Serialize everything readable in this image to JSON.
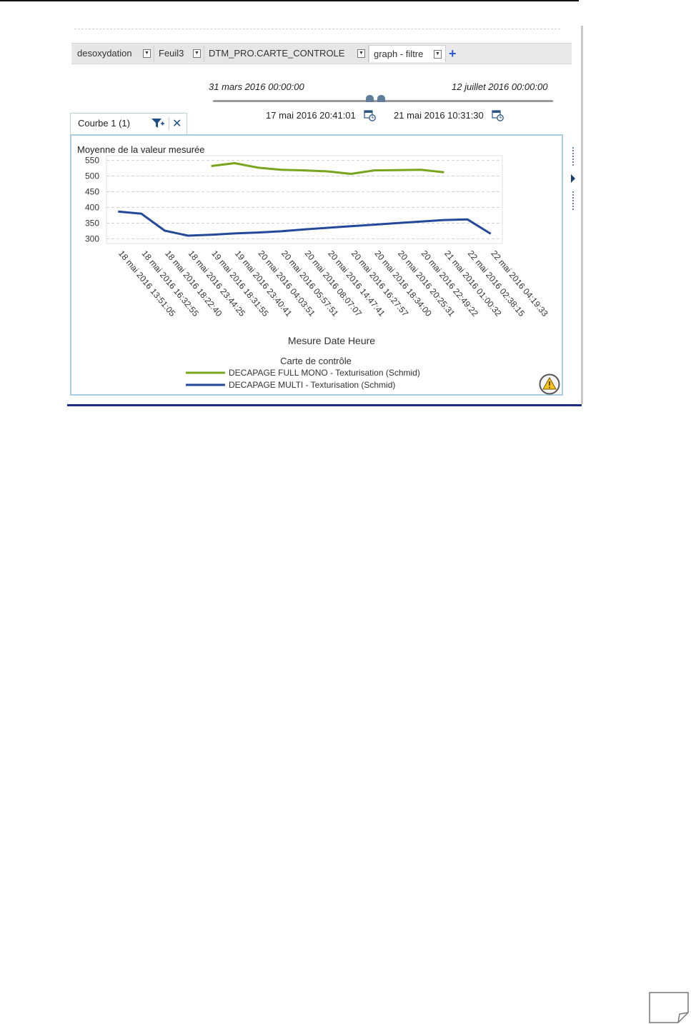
{
  "tabs": [
    {
      "label": "desoxydation",
      "active": false
    },
    {
      "label": "Feuil3",
      "active": false
    },
    {
      "label": "DTM_PRO.CARTE_CONTROLE",
      "active": false
    },
    {
      "label": "graph - filtre",
      "active": true
    }
  ],
  "range": {
    "start": "31 mars 2016 00:00:00",
    "end": "12 juillet 2016 00:00:00",
    "selected_start": "17 mai 2016 20:41:01",
    "selected_end": "21 mai 2016 10:31:30"
  },
  "chart_tab": {
    "label": "Courbe 1 (1)"
  },
  "icons": {
    "tab_dropdown": "chevron-down-icon",
    "add_tab": "plus-icon",
    "slider_handle": "slider-handle-icon",
    "calendar": "calendar-icon",
    "filter": "filter-icon",
    "close": "close-icon",
    "warning": "warning-icon",
    "side_panel": "chevron-right-icon"
  },
  "colors": {
    "full_mono": "#78a51e",
    "multi": "#24489a",
    "accent": "#2a5ad8"
  },
  "chart_data": {
    "type": "line",
    "ylabel": "Moyenne de la valeur mesurée",
    "xlabel": "Mesure Date Heure",
    "yticks": [
      300,
      350,
      400,
      450,
      500,
      550
    ],
    "ylim": [
      285,
      565
    ],
    "grid": true,
    "legend_title": "Carte de contrôle",
    "legend_position": "bottom",
    "categories": [
      "18 mai 2016 13:51:05",
      "18 mai 2016 16:32:55",
      "18 mai 2016 18:22:40",
      "18 mai 2016 23:44:25",
      "19 mai 2016 18:31:55",
      "19 mai 2016 23:40:41",
      "20 mai 2016 04:03:51",
      "20 mai 2016 05:57:51",
      "20 mai 2016 08:07:07",
      "20 mai 2016 14:47:41",
      "20 mai 2016 16:27:57",
      "20 mai 2016 18:34:00",
      "20 mai 2016 20:25:31",
      "20 mai 2016 22:49:22",
      "21 mai 2016 01:00:32",
      "22 mai 2016 02:38:15",
      "22 mai 2016 04:19:33"
    ],
    "series": [
      {
        "name": "DECAPAGE FULL MONO - Texturisation (Schmid)",
        "color": "#78a51e",
        "values": [
          null,
          null,
          null,
          null,
          532,
          541,
          527,
          520,
          518,
          515,
          507,
          518,
          519,
          520,
          512,
          null,
          null
        ]
      },
      {
        "name": "DECAPAGE MULTI - Texturisation (Schmid)",
        "color": "#24489a",
        "values": [
          387,
          380,
          326,
          310,
          313,
          317,
          320,
          324,
          330,
          335,
          340,
          345,
          350,
          355,
          360,
          362,
          316
        ]
      }
    ]
  }
}
